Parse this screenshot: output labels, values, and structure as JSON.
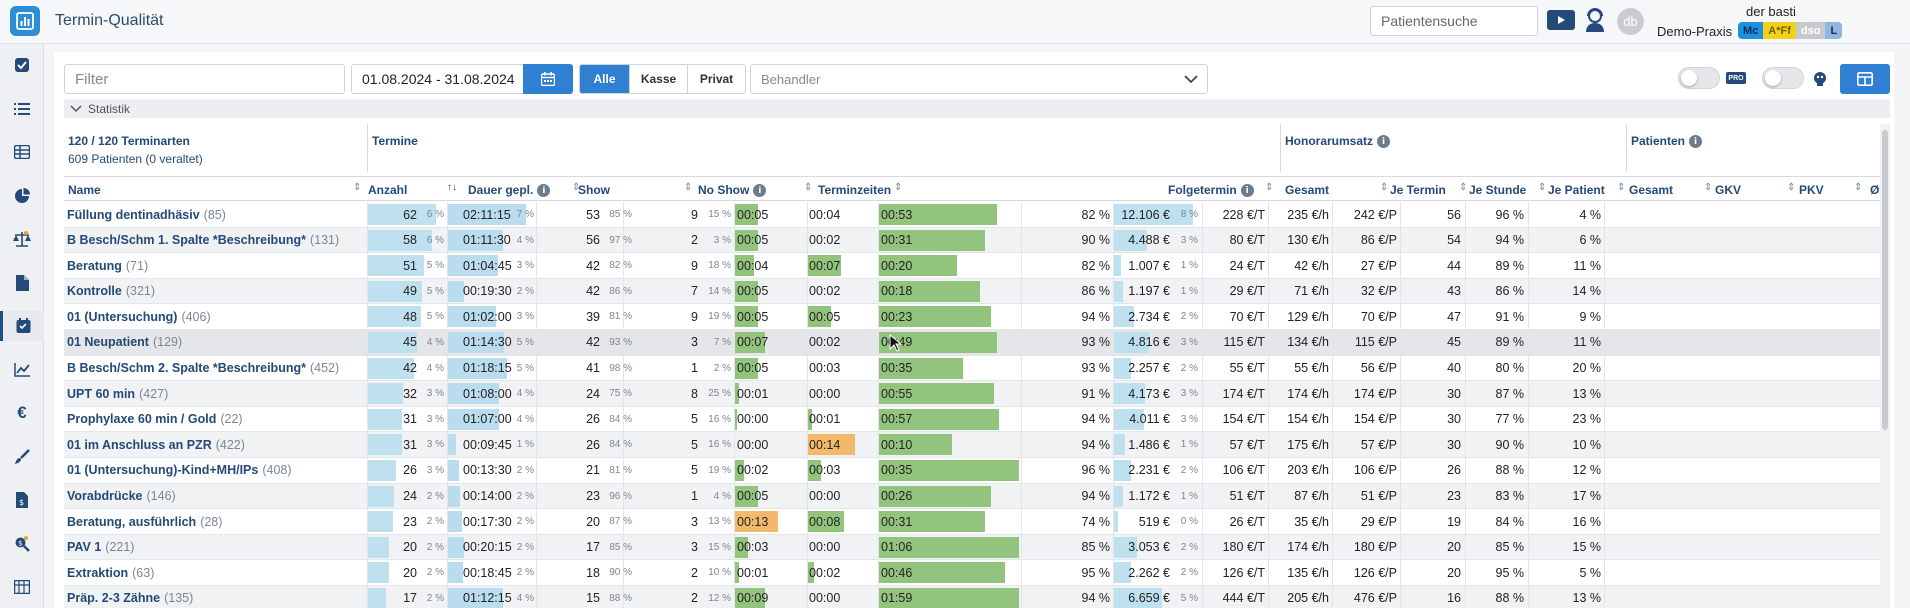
{
  "app": {
    "title": "Termin-Qualität"
  },
  "topbar": {
    "search_placeholder": "Patientensuche",
    "user_initials": "db",
    "user_name": "der basti",
    "practice": "Demo-Praxis",
    "badges": [
      "Mc",
      "A*Ff",
      "dso",
      "L"
    ]
  },
  "sidebar": {
    "icons": [
      "checkbox-icon",
      "list-icon",
      "table-icon",
      "pie-chart-icon",
      "scale-icon",
      "document-icon",
      "calendar-icon",
      "line-chart-icon",
      "euro-icon",
      "brush-icon",
      "invoice-icon",
      "search-money-icon",
      "grid-icon"
    ]
  },
  "toolbar": {
    "filter_placeholder": "Filter",
    "date_range": "01.08.2024 - 31.08.2024",
    "segments": [
      "Alle",
      "Kasse",
      "Privat"
    ],
    "active_segment": "Alle",
    "behandler_placeholder": "Behandler",
    "pro_label": "PRO"
  },
  "stats": {
    "label": "Statistik"
  },
  "summary": {
    "types": "120 / 120 Terminarten",
    "patients": "609 Patienten (0 veraltet)"
  },
  "groups": {
    "termine": "Termine",
    "honorar": "Honorarumsatz",
    "patienten": "Patienten"
  },
  "columns": {
    "name": "Name",
    "anzahl": "Anzahl",
    "dauer": "Dauer gepl.",
    "show": "Show",
    "noshow": "No Show",
    "zeiten": "Terminzeiten",
    "folge": "Folgetermin",
    "gesamt": "Gesamt",
    "je_termin": "Je Termin",
    "je_stunde": "Je Stunde",
    "je_patient": "Je Patient",
    "pat_gesamt": "Gesamt",
    "gkv": "GKV",
    "pkv": "PKV",
    "extra": "Ø"
  },
  "rows": [
    {
      "name": "Füllung dentinadhäsiv",
      "count": "(85)",
      "anzahl": "62",
      "anzahl_pct": "6 %",
      "dauer": "02:11:15",
      "dauer_pct": "7 %",
      "show": "53",
      "show_pct": "85 %",
      "noshow": "9",
      "noshow_pct": "15 %",
      "t1": "00:05",
      "t2": "00:04",
      "t3": "00:53",
      "folge": "82 %",
      "gesamt": "12.106 €",
      "gesamt_pct": "8 %",
      "je_termin": "228 €/T",
      "je_stunde": "235 €/h",
      "je_patient": "242 €/P",
      "pat": "56",
      "gkv": "96 %",
      "pkv": "4 %",
      "f_anz": 0.96,
      "f_dauer": 1.0,
      "f_ges": 0.9,
      "t1c": "green",
      "t1f": 0.35,
      "t2c": "none",
      "t2f": 0,
      "t3f": 0.84
    },
    {
      "name": "B Besch/Schm 1. Spalte *Beschreibung*",
      "count": "(131)",
      "anzahl": "58",
      "anzahl_pct": "6 %",
      "dauer": "01:11:30",
      "dauer_pct": "4 %",
      "show": "56",
      "show_pct": "97 %",
      "noshow": "2",
      "noshow_pct": "3 %",
      "t1": "00:05",
      "t2": "00:02",
      "t3": "00:31",
      "folge": "90 %",
      "gesamt": "4.488 €",
      "gesamt_pct": "3 %",
      "je_termin": "80 €/T",
      "je_stunde": "130 €/h",
      "je_patient": "86 €/P",
      "pat": "54",
      "gkv": "94 %",
      "pkv": "6 %",
      "f_anz": 0.9,
      "f_dauer": 0.7,
      "f_ges": 0.37,
      "t1c": "green",
      "t1f": 0.35,
      "t2c": "none",
      "t2f": 0,
      "t3f": 0.76
    },
    {
      "name": "Beratung",
      "count": "(71)",
      "anzahl": "51",
      "anzahl_pct": "5 %",
      "dauer": "01:04:45",
      "dauer_pct": "3 %",
      "show": "42",
      "show_pct": "82 %",
      "noshow": "9",
      "noshow_pct": "18 %",
      "t1": "00:04",
      "t2": "00:07",
      "t3": "00:20",
      "folge": "82 %",
      "gesamt": "1.007 €",
      "gesamt_pct": "1 %",
      "je_termin": "24 €/T",
      "je_stunde": "42 €/h",
      "je_patient": "27 €/P",
      "pat": "44",
      "gkv": "89 %",
      "pkv": "11 %",
      "f_anz": 0.79,
      "f_dauer": 0.64,
      "f_ges": 0.08,
      "t1c": "green",
      "t1f": 0.3,
      "t2c": "green",
      "t2f": 0.5,
      "t3f": 0.56
    },
    {
      "name": "Kontrolle",
      "count": "(321)",
      "anzahl": "49",
      "anzahl_pct": "5 %",
      "dauer": "00:19:30",
      "dauer_pct": "2 %",
      "show": "42",
      "show_pct": "86 %",
      "noshow": "7",
      "noshow_pct": "14 %",
      "t1": "00:05",
      "t2": "00:02",
      "t3": "00:18",
      "folge": "86 %",
      "gesamt": "1.197 €",
      "gesamt_pct": "1 %",
      "je_termin": "29 €/T",
      "je_stunde": "71 €/h",
      "je_patient": "32 €/P",
      "pat": "43",
      "gkv": "86 %",
      "pkv": "14 %",
      "f_anz": 0.76,
      "f_dauer": 0.2,
      "f_ges": 0.1,
      "t1c": "green",
      "t1f": 0.35,
      "t2c": "none",
      "t2f": 0,
      "t3f": 0.72
    },
    {
      "name": "01 (Untersuchung)",
      "count": "(406)",
      "anzahl": "48",
      "anzahl_pct": "5 %",
      "dauer": "01:02:00",
      "dauer_pct": "3 %",
      "show": "39",
      "show_pct": "81 %",
      "noshow": "9",
      "noshow_pct": "19 %",
      "t1": "00:05",
      "t2": "00:05",
      "t3": "00:23",
      "folge": "94 %",
      "gesamt": "2.734 €",
      "gesamt_pct": "2 %",
      "je_termin": "70 €/T",
      "je_stunde": "129 €/h",
      "je_patient": "70 €/P",
      "pat": "47",
      "gkv": "91 %",
      "pkv": "9 %",
      "f_anz": 0.75,
      "f_dauer": 0.62,
      "f_ges": 0.23,
      "t1c": "green",
      "t1f": 0.35,
      "t2c": "green",
      "t2f": 0.35,
      "t3f": 0.8
    },
    {
      "name": "01 Neupatient",
      "count": "(129)",
      "anzahl": "45",
      "anzahl_pct": "4 %",
      "dauer": "01:14:30",
      "dauer_pct": "5 %",
      "show": "42",
      "show_pct": "93 %",
      "noshow": "3",
      "noshow_pct": "7 %",
      "t1": "00:07",
      "t2": "00:02",
      "t3": "00:49",
      "folge": "93 %",
      "gesamt": "4.816 €",
      "gesamt_pct": "3 %",
      "je_termin": "115 €/T",
      "je_stunde": "134 €/h",
      "je_patient": "115 €/P",
      "pat": "45",
      "gkv": "89 %",
      "pkv": "11 %",
      "f_anz": 0.7,
      "f_dauer": 0.72,
      "f_ges": 0.4,
      "t1c": "green",
      "t1f": 0.45,
      "t2c": "none",
      "t2f": 0,
      "t3f": 0.84
    },
    {
      "name": "B Besch/Schm 2. Spalte *Beschreibung*",
      "count": "(452)",
      "anzahl": "42",
      "anzahl_pct": "4 %",
      "dauer": "01:18:15",
      "dauer_pct": "5 %",
      "show": "41",
      "show_pct": "98 %",
      "noshow": "1",
      "noshow_pct": "2 %",
      "t1": "00:05",
      "t2": "00:03",
      "t3": "00:35",
      "folge": "93 %",
      "gesamt": "2.257 €",
      "gesamt_pct": "2 %",
      "je_termin": "55 €/T",
      "je_stunde": "55 €/h",
      "je_patient": "56 €/P",
      "pat": "40",
      "gkv": "80 %",
      "pkv": "20 %",
      "f_anz": 0.65,
      "f_dauer": 0.75,
      "f_ges": 0.19,
      "t1c": "green",
      "t1f": 0.35,
      "t2c": "none",
      "t2f": 0,
      "t3f": 0.6
    },
    {
      "name": "UPT 60 min",
      "count": "(427)",
      "anzahl": "32",
      "anzahl_pct": "3 %",
      "dauer": "01:08:00",
      "dauer_pct": "4 %",
      "show": "24",
      "show_pct": "75 %",
      "noshow": "8",
      "noshow_pct": "25 %",
      "t1": "00:01",
      "t2": "00:00",
      "t3": "00:55",
      "folge": "91 %",
      "gesamt": "4.173 €",
      "gesamt_pct": "3 %",
      "je_termin": "174 €/T",
      "je_stunde": "174 €/h",
      "je_patient": "174 €/P",
      "pat": "30",
      "gkv": "87 %",
      "pkv": "13 %",
      "f_anz": 0.5,
      "f_dauer": 0.66,
      "f_ges": 0.35,
      "t1c": "green",
      "t1f": 0.08,
      "t2c": "none",
      "t2f": 0,
      "t3f": 0.82
    },
    {
      "name": "Prophylaxe 60 min / Gold",
      "count": "(22)",
      "anzahl": "31",
      "anzahl_pct": "3 %",
      "dauer": "01:07:00",
      "dauer_pct": "4 %",
      "show": "26",
      "show_pct": "84 %",
      "noshow": "5",
      "noshow_pct": "16 %",
      "t1": "00:00",
      "t2": "00:01",
      "t3": "00:57",
      "folge": "94 %",
      "gesamt": "4.011 €",
      "gesamt_pct": "3 %",
      "je_termin": "154 €/T",
      "je_stunde": "154 €/h",
      "je_patient": "154 €/P",
      "pat": "30",
      "gkv": "77 %",
      "pkv": "23 %",
      "f_anz": 0.48,
      "f_dauer": 0.65,
      "f_ges": 0.34,
      "t1c": "green",
      "t1f": 0.05,
      "t2c": "green",
      "t2f": 0.08,
      "t3f": 0.86
    },
    {
      "name": "01 im Anschluss an PZR",
      "count": "(422)",
      "anzahl": "31",
      "anzahl_pct": "3 %",
      "dauer": "00:09:45",
      "dauer_pct": "1 %",
      "show": "26",
      "show_pct": "84 %",
      "noshow": "5",
      "noshow_pct": "16 %",
      "t1": "00:00",
      "t2": "00:14",
      "t3": "00:10",
      "folge": "94 %",
      "gesamt": "1.486 €",
      "gesamt_pct": "1 %",
      "je_termin": "57 €/T",
      "je_stunde": "175 €/h",
      "je_patient": "57 €/P",
      "pat": "30",
      "gkv": "90 %",
      "pkv": "10 %",
      "f_anz": 0.48,
      "f_dauer": 0.1,
      "f_ges": 0.12,
      "t1c": "none",
      "t1f": 0,
      "t2c": "orange",
      "t2f": 0.7,
      "t3f": 0.52
    },
    {
      "name": "01 (Untersuchung)-Kind+MH/IPs",
      "count": "(408)",
      "anzahl": "26",
      "anzahl_pct": "3 %",
      "dauer": "00:13:30",
      "dauer_pct": "2 %",
      "show": "21",
      "show_pct": "81 %",
      "noshow": "5",
      "noshow_pct": "19 %",
      "t1": "00:02",
      "t2": "00:03",
      "t3": "00:35",
      "folge": "96 %",
      "gesamt": "2.231 €",
      "gesamt_pct": "2 %",
      "je_termin": "106 €/T",
      "je_stunde": "203 €/h",
      "je_patient": "106 €/P",
      "pat": "26",
      "gkv": "88 %",
      "pkv": "12 %",
      "f_anz": 0.4,
      "f_dauer": 0.14,
      "f_ges": 0.19,
      "t1c": "green",
      "t1f": 0.15,
      "t2c": "green",
      "t2f": 0.2,
      "t3f": 1.0
    },
    {
      "name": "Vorabdrücke",
      "count": "(146)",
      "anzahl": "24",
      "anzahl_pct": "2 %",
      "dauer": "00:14:00",
      "dauer_pct": "2 %",
      "show": "23",
      "show_pct": "96 %",
      "noshow": "1",
      "noshow_pct": "4 %",
      "t1": "00:05",
      "t2": "00:00",
      "t3": "00:26",
      "folge": "94 %",
      "gesamt": "1.172 €",
      "gesamt_pct": "1 %",
      "je_termin": "51 €/T",
      "je_stunde": "87 €/h",
      "je_patient": "51 €/P",
      "pat": "23",
      "gkv": "83 %",
      "pkv": "17 %",
      "f_anz": 0.37,
      "f_dauer": 0.15,
      "f_ges": 0.1,
      "t1c": "green",
      "t1f": 0.35,
      "t2c": "none",
      "t2f": 0,
      "t3f": 0.8
    },
    {
      "name": "Beratung, ausführlich",
      "count": "(28)",
      "anzahl": "23",
      "anzahl_pct": "2 %",
      "dauer": "00:17:30",
      "dauer_pct": "2 %",
      "show": "20",
      "show_pct": "87 %",
      "noshow": "3",
      "noshow_pct": "13 %",
      "t1": "00:13",
      "t2": "00:08",
      "t3": "00:31",
      "folge": "74 %",
      "gesamt": "519 €",
      "gesamt_pct": "0 %",
      "je_termin": "26 €/T",
      "je_stunde": "35 €/h",
      "je_patient": "29 €/P",
      "pat": "19",
      "gkv": "84 %",
      "pkv": "16 %",
      "f_anz": 0.36,
      "f_dauer": 0.18,
      "f_ges": 0.05,
      "t1c": "orange",
      "t1f": 0.65,
      "t2c": "green",
      "t2f": 0.55,
      "t3f": 0.76
    },
    {
      "name": "PAV 1",
      "count": "(221)",
      "anzahl": "20",
      "anzahl_pct": "2 %",
      "dauer": "00:20:15",
      "dauer_pct": "2 %",
      "show": "17",
      "show_pct": "85 %",
      "noshow": "3",
      "noshow_pct": "15 %",
      "t1": "00:03",
      "t2": "00:00",
      "t3": "01:06",
      "folge": "85 %",
      "gesamt": "3.053 €",
      "gesamt_pct": "2 %",
      "je_termin": "180 €/T",
      "je_stunde": "174 €/h",
      "je_patient": "180 €/P",
      "pat": "20",
      "gkv": "85 %",
      "pkv": "15 %",
      "f_anz": 0.31,
      "f_dauer": 0.2,
      "f_ges": 0.26,
      "t1c": "green",
      "t1f": 0.2,
      "t2c": "none",
      "t2f": 0,
      "t3f": 1.0
    },
    {
      "name": "Extraktion",
      "count": "(63)",
      "anzahl": "20",
      "anzahl_pct": "2 %",
      "dauer": "00:18:45",
      "dauer_pct": "2 %",
      "show": "18",
      "show_pct": "90 %",
      "noshow": "2",
      "noshow_pct": "10 %",
      "t1": "00:01",
      "t2": "00:02",
      "t3": "00:46",
      "folge": "95 %",
      "gesamt": "2.262 €",
      "gesamt_pct": "2 %",
      "je_termin": "126 €/T",
      "je_stunde": "135 €/h",
      "je_patient": "126 €/P",
      "pat": "20",
      "gkv": "95 %",
      "pkv": "5 %",
      "f_anz": 0.31,
      "f_dauer": 0.19,
      "f_ges": 0.19,
      "t1c": "green",
      "t1f": 0.08,
      "t2c": "green",
      "t2f": 0.1,
      "t3f": 0.9
    },
    {
      "name": "Präp. 2-3 Zähne",
      "count": "(135)",
      "anzahl": "17",
      "anzahl_pct": "2 %",
      "dauer": "01:12:15",
      "dauer_pct": "4 %",
      "show": "15",
      "show_pct": "88 %",
      "noshow": "2",
      "noshow_pct": "12 %",
      "t1": "00:09",
      "t2": "00:00",
      "t3": "01:59",
      "folge": "94 %",
      "gesamt": "6.659 €",
      "gesamt_pct": "5 %",
      "je_termin": "444 €/T",
      "je_stunde": "205 €/h",
      "je_patient": "476 €/P",
      "pat": "16",
      "gkv": "88 %",
      "pkv": "13 %",
      "f_anz": 0.27,
      "f_dauer": 0.7,
      "f_ges": 0.55,
      "t1c": "green",
      "t1f": 0.45,
      "t2c": "none",
      "t2f": 0,
      "t3f": 1.0
    }
  ],
  "colors": {
    "accent": "#2f7fd2",
    "title": "#234a78",
    "bar_blue": "#bfe0ef",
    "bar_green": "#93c47d",
    "bar_orange": "#f2b96b"
  }
}
